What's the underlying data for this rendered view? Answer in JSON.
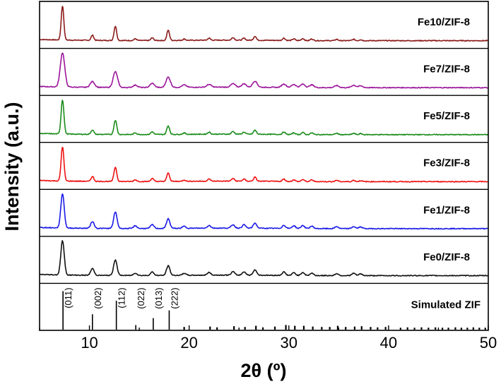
{
  "chart_data": {
    "type": "line",
    "xlabel": "2θ (º)",
    "ylabel": "Intensity (a.u.)",
    "xlim": [
      5,
      50
    ],
    "x_ticks": [
      "10",
      "20",
      "30",
      "40",
      "50"
    ],
    "x_tick_values": [
      10,
      20,
      30,
      40,
      50
    ],
    "series": [
      {
        "name": "Fe10/ZIF-8",
        "color": "#8b1a1a",
        "widths": 0.13,
        "relative_peak_heights": [
          1.0,
          0.15,
          0.42,
          0.05,
          0.08,
          0.3,
          0.04,
          0.06,
          0.08,
          0.06,
          0.12,
          0.07,
          0.05,
          0.06,
          0.05,
          0.04,
          0.04,
          0.03
        ]
      },
      {
        "name": "Fe7/ZIF-8",
        "color": "#9b169b",
        "widths": 0.22,
        "relative_peak_heights": [
          1.0,
          0.17,
          0.46,
          0.07,
          0.12,
          0.3,
          0.07,
          0.08,
          0.1,
          0.1,
          0.18,
          0.1,
          0.09,
          0.1,
          0.08,
          0.06,
          0.07,
          0.05
        ]
      },
      {
        "name": "Fe5/ZIF-8",
        "color": "#1a8c1a",
        "widths": 0.14,
        "relative_peak_heights": [
          1.0,
          0.13,
          0.42,
          0.05,
          0.08,
          0.25,
          0.04,
          0.06,
          0.08,
          0.06,
          0.12,
          0.07,
          0.05,
          0.06,
          0.05,
          0.04,
          0.04,
          0.03
        ]
      },
      {
        "name": "Fe3/ZIF-8",
        "color": "#ee1111",
        "widths": 0.14,
        "relative_peak_heights": [
          1.0,
          0.14,
          0.42,
          0.05,
          0.09,
          0.25,
          0.04,
          0.06,
          0.08,
          0.06,
          0.12,
          0.07,
          0.05,
          0.06,
          0.05,
          0.04,
          0.04,
          0.03
        ]
      },
      {
        "name": "Fe1/ZIF-8",
        "color": "#1a1ae6",
        "widths": 0.17,
        "relative_peak_heights": [
          1.0,
          0.2,
          0.48,
          0.08,
          0.11,
          0.28,
          0.06,
          0.08,
          0.1,
          0.1,
          0.15,
          0.09,
          0.08,
          0.09,
          0.07,
          0.06,
          0.06,
          0.05
        ]
      },
      {
        "name": "Fe0/ZIF-8",
        "color": "#111111",
        "widths": 0.17,
        "relative_peak_heights": [
          1.0,
          0.2,
          0.46,
          0.07,
          0.1,
          0.28,
          0.06,
          0.08,
          0.1,
          0.1,
          0.16,
          0.1,
          0.08,
          0.09,
          0.07,
          0.06,
          0.07,
          0.05
        ]
      }
    ],
    "peak_positions_2theta": [
      7.3,
      10.3,
      12.6,
      14.6,
      16.3,
      17.9,
      19.5,
      22.0,
      24.4,
      25.5,
      26.6,
      29.5,
      30.5,
      31.4,
      32.3,
      34.8,
      36.5,
      37.2
    ],
    "simulated": {
      "name": "Simulated ZIF",
      "hkl_labels": [
        {
          "x": 7.35,
          "label": "(011)"
        },
        {
          "x": 10.3,
          "label": "(002)"
        },
        {
          "x": 12.7,
          "label": "(112)"
        },
        {
          "x": 14.65,
          "label": "(022)"
        },
        {
          "x": 16.4,
          "label": "(013)"
        },
        {
          "x": 18.0,
          "label": "(222)"
        }
      ],
      "stick_positions": [
        7.35,
        10.3,
        12.7,
        14.65,
        16.4,
        18.0,
        19.5,
        22.1,
        22.8,
        24.5,
        25.6,
        26.7,
        27.4,
        28.6,
        29.7,
        30.6,
        31.5,
        32.4,
        33.3,
        34.1,
        34.9,
        35.7,
        36.6,
        37.3,
        38.2,
        38.9,
        39.7,
        41.2,
        41.9,
        42.6,
        43.3,
        44.0,
        44.7,
        45.4,
        46.0,
        46.7,
        47.3,
        47.9,
        48.5,
        49.1,
        49.7
      ],
      "stick_heights": [
        1.0,
        0.4,
        0.75,
        0.12,
        0.3,
        0.5,
        0.07,
        0.08,
        0.06,
        0.09,
        0.07,
        0.1,
        0.06,
        0.08,
        0.12,
        0.1,
        0.1,
        0.08,
        0.07,
        0.07,
        0.1,
        0.07,
        0.08,
        0.09,
        0.07,
        0.06,
        0.07,
        0.05,
        0.06,
        0.05,
        0.06,
        0.05,
        0.06,
        0.05,
        0.05,
        0.06,
        0.05,
        0.05,
        0.06,
        0.05,
        0.05
      ]
    }
  }
}
